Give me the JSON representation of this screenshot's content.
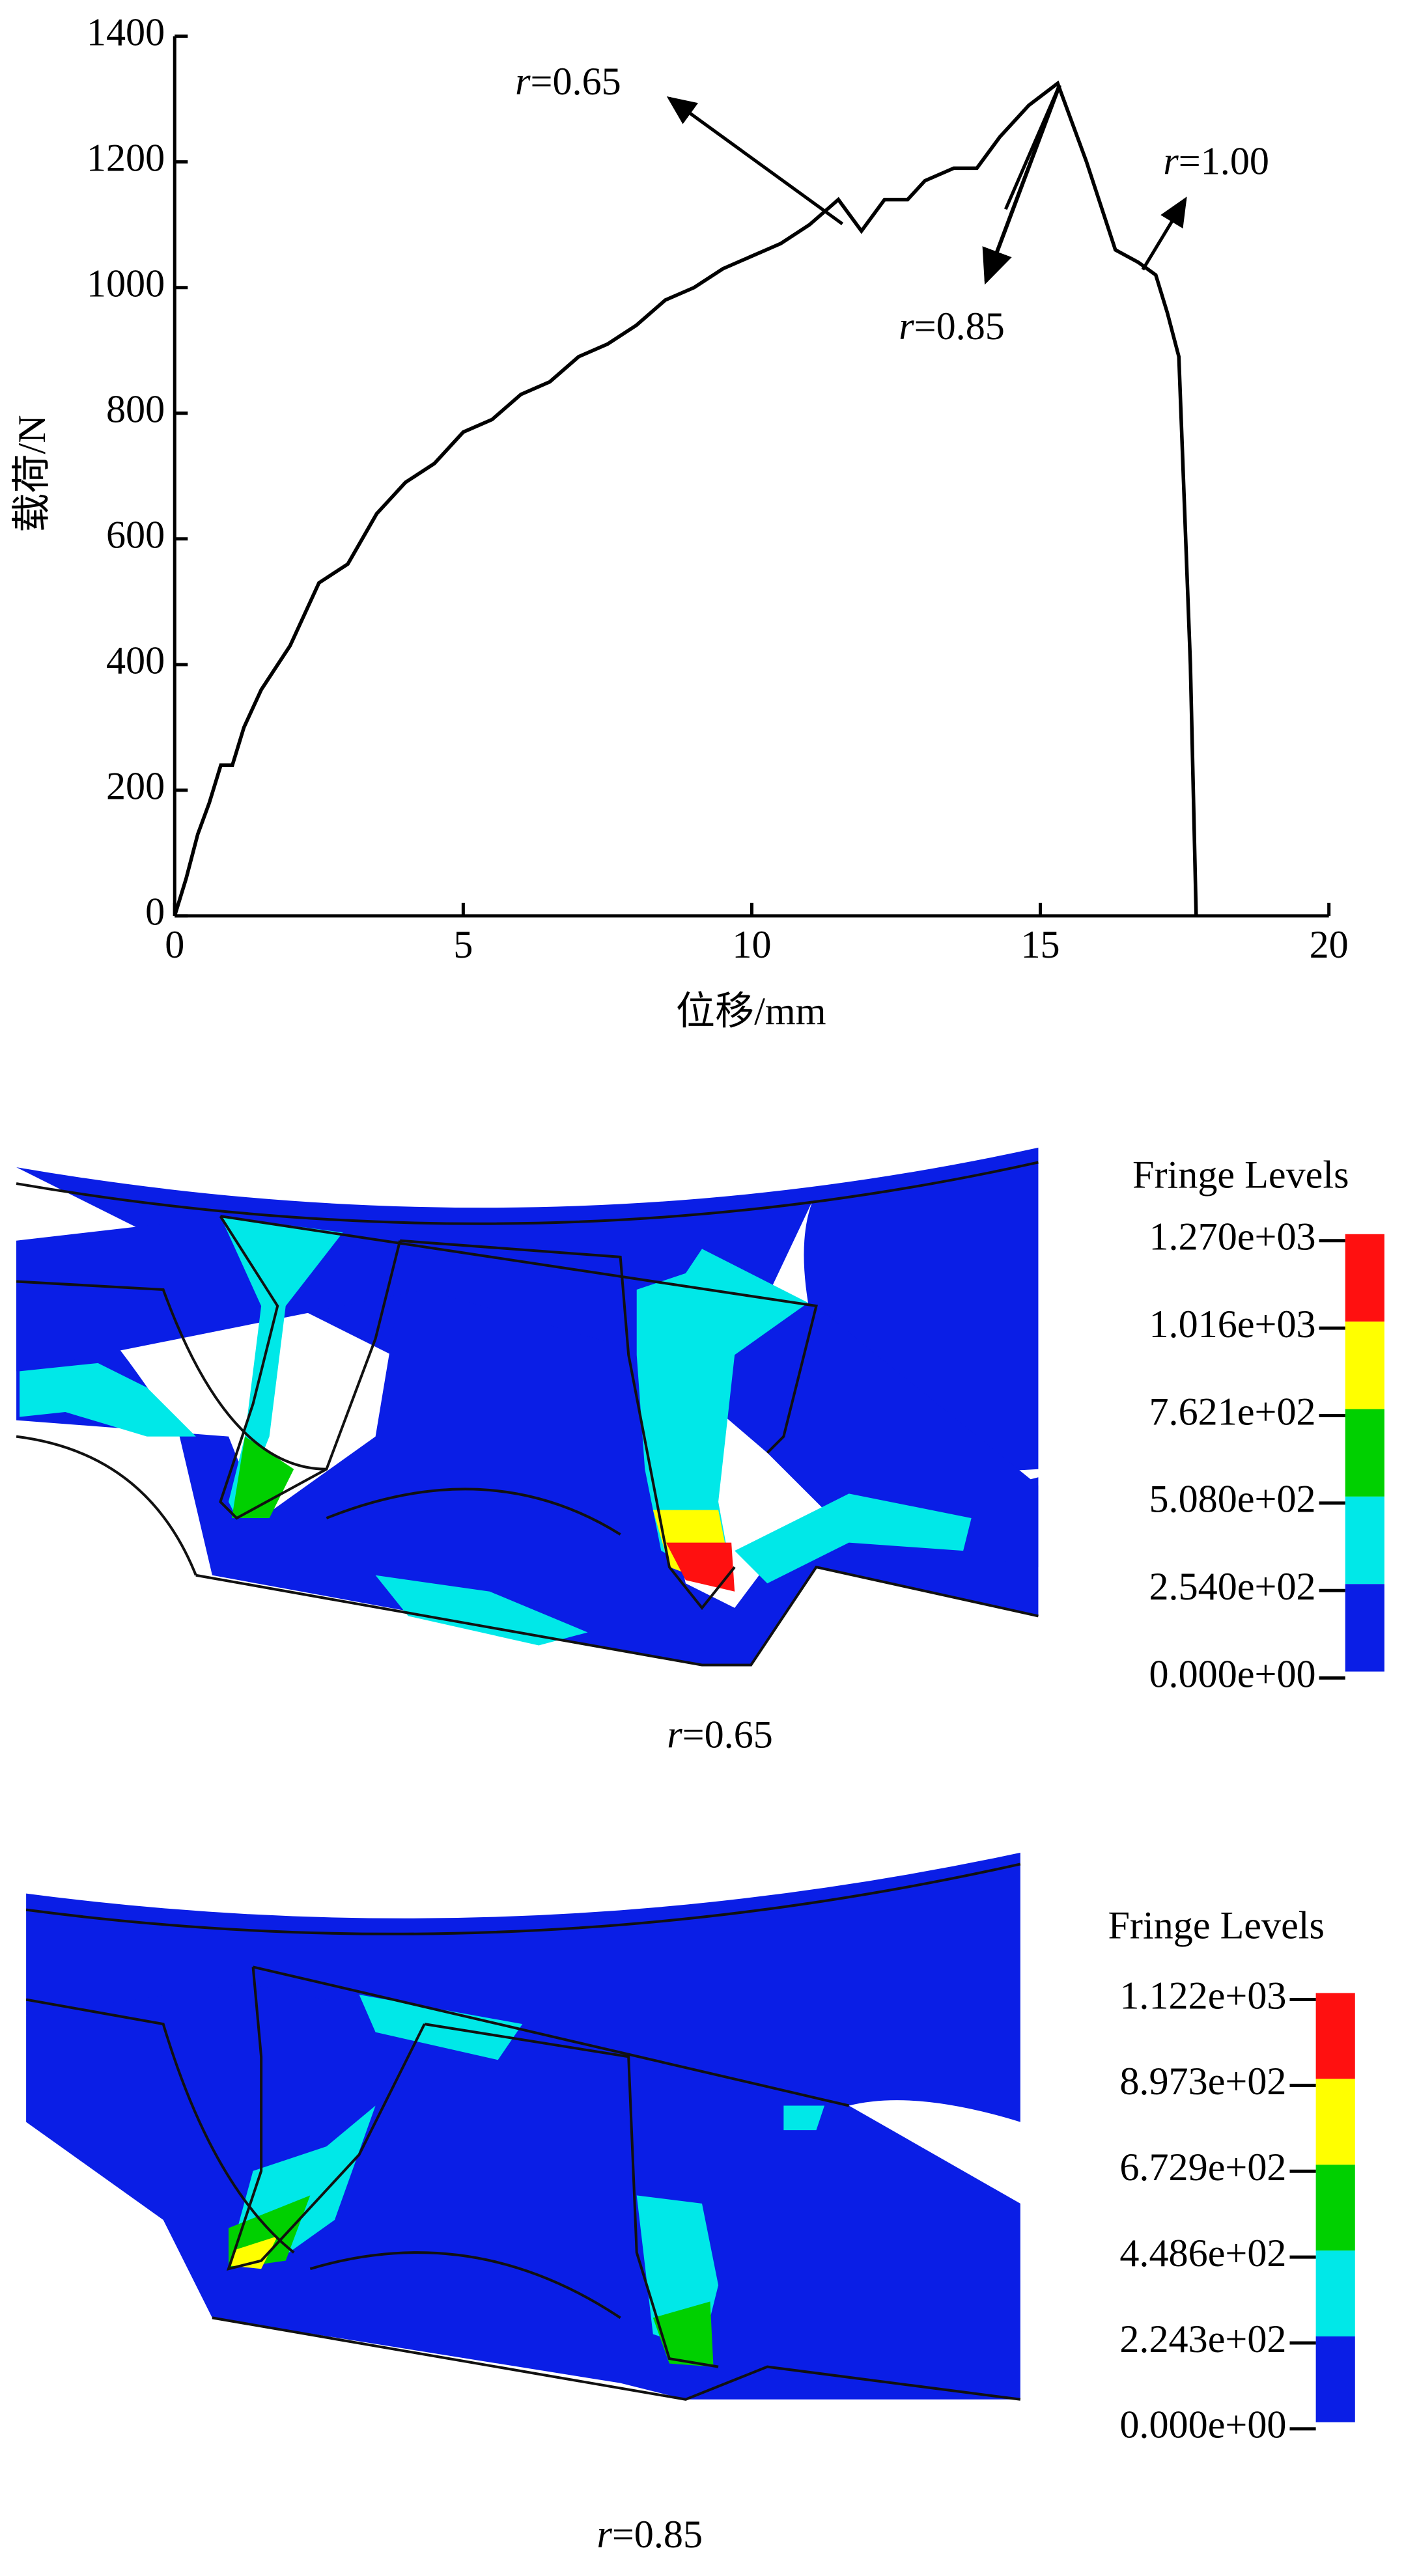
{
  "chart_data": {
    "type": "line",
    "x_label": "位移/mm",
    "y_label": "载荷/N",
    "color": "#000000",
    "x": [
      0,
      0.2,
      0.4,
      0.6,
      0.8,
      1.0,
      1.2,
      1.5,
      2,
      2.5,
      3,
      3.5,
      4,
      4.5,
      5,
      5.5,
      6,
      6.5,
      7,
      7.5,
      8,
      8.5,
      9,
      9.5,
      10,
      10.5,
      11,
      11.5,
      11.9,
      12.3,
      12.7,
      13,
      13.5,
      13.9,
      14.3,
      14.8,
      15.3,
      15.8,
      16.3,
      16.7,
      17,
      17.2,
      17.4,
      17.6,
      17.7
    ],
    "values": [
      0,
      60,
      130,
      180,
      240,
      240,
      300,
      360,
      430,
      530,
      560,
      640,
      690,
      720,
      770,
      790,
      830,
      850,
      890,
      910,
      940,
      980,
      1000,
      1030,
      1050,
      1070,
      1100,
      1140,
      1090,
      1140,
      1140,
      1170,
      1190,
      1190,
      1240,
      1290,
      1325,
      1200,
      1060,
      1040,
      1020,
      960,
      890,
      400,
      0
    ],
    "xlim": [
      0,
      20
    ],
    "ylim": [
      0,
      1400
    ],
    "xticks": [
      0,
      5,
      10,
      15,
      20
    ],
    "yticks": [
      0,
      200,
      400,
      600,
      800,
      1000,
      1200,
      1400
    ],
    "annotations": [
      "r=0.65",
      "r=0.85",
      "r=1.00"
    ]
  },
  "panels": [
    {
      "legend_title": "Fringe Levels",
      "levels": [
        "1.270e+03",
        "1.016e+03",
        "7.621e+02",
        "5.080e+02",
        "2.540e+02",
        "0.000e+00"
      ],
      "colors": [
        "#ff1010",
        "#ffff00",
        "#00d000",
        "#00e8e8",
        "#0a1ee6"
      ],
      "caption": "r=0.65"
    },
    {
      "legend_title": "Fringe Levels",
      "levels": [
        "1.122e+03",
        "8.973e+02",
        "6.729e+02",
        "4.486e+02",
        "2.243e+02",
        "0.000e+00"
      ],
      "colors": [
        "#ff1010",
        "#ffff00",
        "#00d000",
        "#00e8e8",
        "#0a1ee6"
      ],
      "caption": "r=0.85"
    }
  ]
}
